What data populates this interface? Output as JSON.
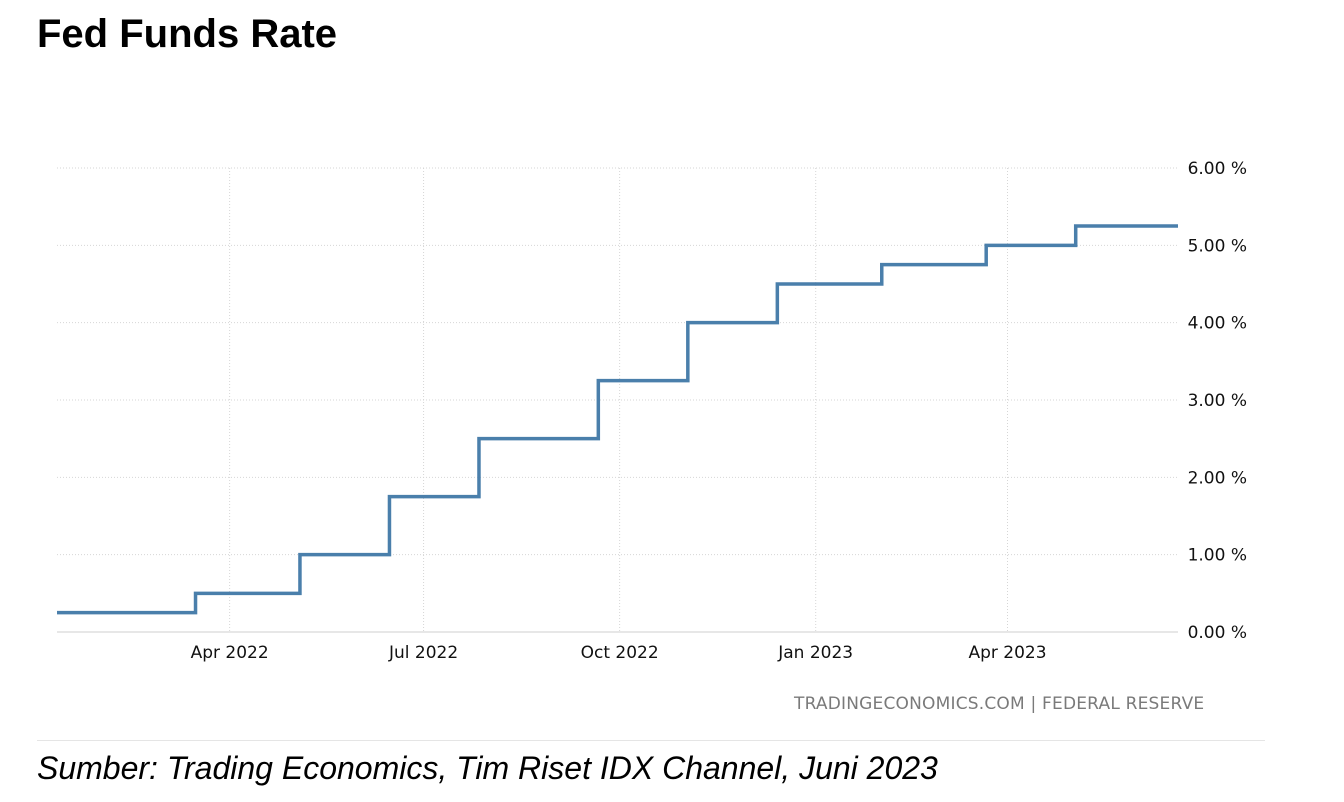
{
  "chart_data": {
    "type": "line",
    "title": "Fed Funds Rate",
    "xlabel": "",
    "ylabel": "",
    "step": true,
    "ylim": [
      0,
      6
    ],
    "xlim": [
      "2022-01-10",
      "2023-06-20"
    ],
    "y_ticks": [
      {
        "value": 0,
        "label": "0.00 %"
      },
      {
        "value": 1,
        "label": "1.00 %"
      },
      {
        "value": 2,
        "label": "2.00 %"
      },
      {
        "value": 3,
        "label": "3.00 %"
      },
      {
        "value": 4,
        "label": "4.00 %"
      },
      {
        "value": 5,
        "label": "5.00 %"
      },
      {
        "value": 6,
        "label": "6.00 %"
      }
    ],
    "x_ticks": [
      {
        "value": "2022-04-01",
        "label": "Apr 2022"
      },
      {
        "value": "2022-07-01",
        "label": "Jul 2022"
      },
      {
        "value": "2022-10-01",
        "label": "Oct 2022"
      },
      {
        "value": "2023-01-01",
        "label": "Jan 2023"
      },
      {
        "value": "2023-04-01",
        "label": "Apr 2023"
      }
    ],
    "grid": true,
    "line_color": "#4a7fab",
    "series": [
      {
        "values": [
          {
            "x": "2022-01-10",
            "y": 0.25
          },
          {
            "x": "2022-03-16",
            "y": 0.5
          },
          {
            "x": "2022-05-04",
            "y": 1.0
          },
          {
            "x": "2022-06-15",
            "y": 1.75
          },
          {
            "x": "2022-07-27",
            "y": 2.5
          },
          {
            "x": "2022-09-21",
            "y": 3.25
          },
          {
            "x": "2022-11-02",
            "y": 4.0
          },
          {
            "x": "2022-12-14",
            "y": 4.5
          },
          {
            "x": "2023-02-01",
            "y": 4.75
          },
          {
            "x": "2023-03-22",
            "y": 5.0
          },
          {
            "x": "2023-05-03",
            "y": 5.25
          },
          {
            "x": "2023-06-20",
            "y": 5.25
          }
        ]
      }
    ]
  },
  "source_text": "TRADINGECONOMICS.COM | FEDERAL RESERVE",
  "caption": "Sumber: Trading Economics, Tim Riset IDX Channel, Juni 2023"
}
